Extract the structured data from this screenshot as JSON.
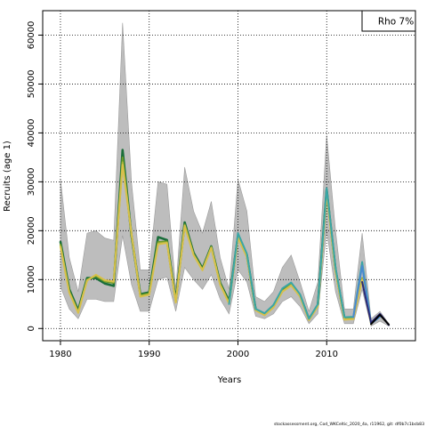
{
  "chart_data": {
    "type": "line",
    "title": "",
    "xlabel": "Years",
    "ylabel": "Recruits (age 1)",
    "xlim": [
      1978,
      2020
    ],
    "ylim": [
      -2500,
      65000
    ],
    "x_ticks": [
      1980,
      1990,
      2000,
      2010
    ],
    "y_ticks": [
      0,
      10000,
      20000,
      30000,
      40000,
      50000,
      60000
    ],
    "grid": true,
    "legend": {
      "position": "top-right",
      "text": "Rho 7%"
    },
    "footnote": "stockassessment.org, Cod_WKCeltic_2020_4a, r11962, git: df0b7c1bcb83",
    "confidence_band": {
      "x": [
        1980,
        1981,
        1982,
        1983,
        1984,
        1985,
        1986,
        1987,
        1988,
        1989,
        1990,
        1991,
        1992,
        1993,
        1994,
        1995,
        1996,
        1997,
        1998,
        1999,
        2000,
        2001,
        2002,
        2003,
        2004,
        2005,
        2006,
        2007,
        2008,
        2009,
        2010,
        2011,
        2012,
        2013,
        2014,
        2015,
        2016,
        2017
      ],
      "upper": [
        30500,
        14500,
        7500,
        19500,
        20000,
        18500,
        18000,
        62500,
        30000,
        12000,
        12000,
        30000,
        29500,
        8000,
        33000,
        24000,
        19500,
        26000,
        14500,
        8000,
        30500,
        24000,
        6500,
        5500,
        7500,
        12500,
        15000,
        9500,
        3500,
        9500,
        39500,
        20000,
        4000,
        4000,
        19500,
        2000,
        3500,
        1000
      ],
      "lower": [
        8500,
        4000,
        2000,
        6000,
        6000,
        5500,
        5500,
        19000,
        9000,
        3500,
        3500,
        10000,
        10500,
        3500,
        12500,
        10000,
        8000,
        11000,
        6000,
        3000,
        12000,
        9500,
        2500,
        2000,
        3000,
        5500,
        6500,
        4500,
        1000,
        3000,
        20000,
        7500,
        1000,
        1000,
        8000,
        500,
        1500,
        500
      ]
    },
    "series": [
      {
        "color": "#1a6e3a",
        "x": [
          1980,
          1981,
          1982,
          1983,
          1984,
          1985,
          1986,
          1987,
          1988,
          1989,
          1990,
          1991,
          1992,
          1993,
          1994,
          1995,
          1996,
          1997,
          1998,
          1999,
          2000,
          2001,
          2002,
          2003,
          2004,
          2005,
          2006,
          2007,
          2008,
          2009,
          2010,
          2011,
          2012,
          2013
        ],
        "values": [
          17700,
          8000,
          3700,
          10300,
          10300,
          9200,
          8700,
          36500,
          19000,
          7000,
          7400,
          18700,
          18100,
          5700,
          21700,
          15500,
          12300,
          16800,
          9300,
          5600,
          18900,
          15000,
          3900,
          3000,
          4700,
          7700,
          9100,
          6800,
          1900,
          4800,
          28400,
          12000,
          2100,
          2200
        ]
      },
      {
        "color": "#6a9a2a",
        "x": [
          1980,
          1981,
          1982,
          1983,
          1984,
          1985,
          1986,
          1987,
          1988,
          1989,
          1990,
          1991,
          1992,
          1993,
          1994,
          1995,
          1996,
          1997,
          1998,
          1999,
          2000,
          2001,
          2002,
          2003,
          2004,
          2005,
          2006,
          2007,
          2008,
          2009,
          2010,
          2011,
          2012,
          2013,
          2014
        ],
        "values": [
          17200,
          7600,
          3400,
          10000,
          10700,
          9600,
          9300,
          35000,
          19200,
          6800,
          7200,
          17700,
          17800,
          5500,
          21300,
          15200,
          12100,
          16700,
          9100,
          5300,
          18700,
          14800,
          3800,
          2800,
          4500,
          7700,
          9000,
          6700,
          1800,
          4700,
          28000,
          11800,
          1900,
          2100,
          10300
        ]
      },
      {
        "color": "#a6b43a",
        "x": [
          1980,
          1981,
          1982,
          1983,
          1984,
          1985,
          1986,
          1987,
          1988,
          1989,
          1990,
          1991,
          1992,
          1993,
          1994,
          1995,
          1996,
          1997,
          1998,
          1999,
          2000,
          2001,
          2002,
          2003,
          2004,
          2005,
          2006,
          2007,
          2008,
          2009,
          2010,
          2011,
          2012,
          2013,
          2014,
          2015
        ],
        "values": [
          16900,
          7400,
          3300,
          9900,
          10900,
          9800,
          9500,
          34000,
          19300,
          6600,
          7000,
          17400,
          17600,
          5400,
          21100,
          15100,
          12000,
          16600,
          9000,
          5200,
          18600,
          14700,
          3800,
          2800,
          4400,
          7600,
          8900,
          6600,
          1800,
          4600,
          27800,
          11700,
          1900,
          2000,
          10200,
          1000
        ]
      },
      {
        "color": "#d8c04a",
        "x": [
          1980,
          1981,
          1982,
          1983,
          1984,
          1985,
          1986,
          1987,
          1988,
          1989,
          1990,
          1991,
          1992,
          1993,
          1994,
          1995,
          1996,
          1997,
          1998,
          1999,
          2000,
          2001,
          2002,
          2003,
          2004,
          2005,
          2006,
          2007,
          2008,
          2009,
          2010,
          2011,
          2012,
          2013,
          2014,
          2015
        ],
        "values": [
          16700,
          7300,
          3200,
          9800,
          11000,
          9900,
          9600,
          33500,
          19400,
          6500,
          6900,
          17200,
          17500,
          5300,
          21000,
          15000,
          11900,
          16500,
          8900,
          5100,
          18500,
          14600,
          3700,
          2700,
          4300,
          7500,
          8800,
          6500,
          1700,
          4500,
          27600,
          11600,
          1800,
          1900,
          10000,
          900
        ]
      },
      {
        "color": "#3aa6a6",
        "x": [
          1999,
          2000,
          2001,
          2002,
          2003,
          2004,
          2005,
          2006,
          2007,
          2008,
          2009,
          2010,
          2011,
          2012,
          2013,
          2014,
          2015,
          2016
        ],
        "values": [
          5000,
          19500,
          15300,
          4000,
          3100,
          4800,
          8200,
          9400,
          7000,
          2000,
          5000,
          28700,
          12400,
          2300,
          2400,
          13600,
          1100,
          2500
        ]
      },
      {
        "color": "#4a8ad0",
        "x": [
          2013,
          2014,
          2015,
          2016
        ],
        "values": [
          2300,
          12800,
          1000,
          2400
        ]
      },
      {
        "color": "#2a2a78",
        "x": [
          2014,
          2015,
          2016,
          2017
        ],
        "values": [
          9500,
          1200,
          3000,
          700
        ]
      },
      {
        "color": "#000000",
        "x": [
          2015,
          2016,
          2017
        ],
        "values": [
          900,
          2800,
          800
        ]
      }
    ]
  }
}
